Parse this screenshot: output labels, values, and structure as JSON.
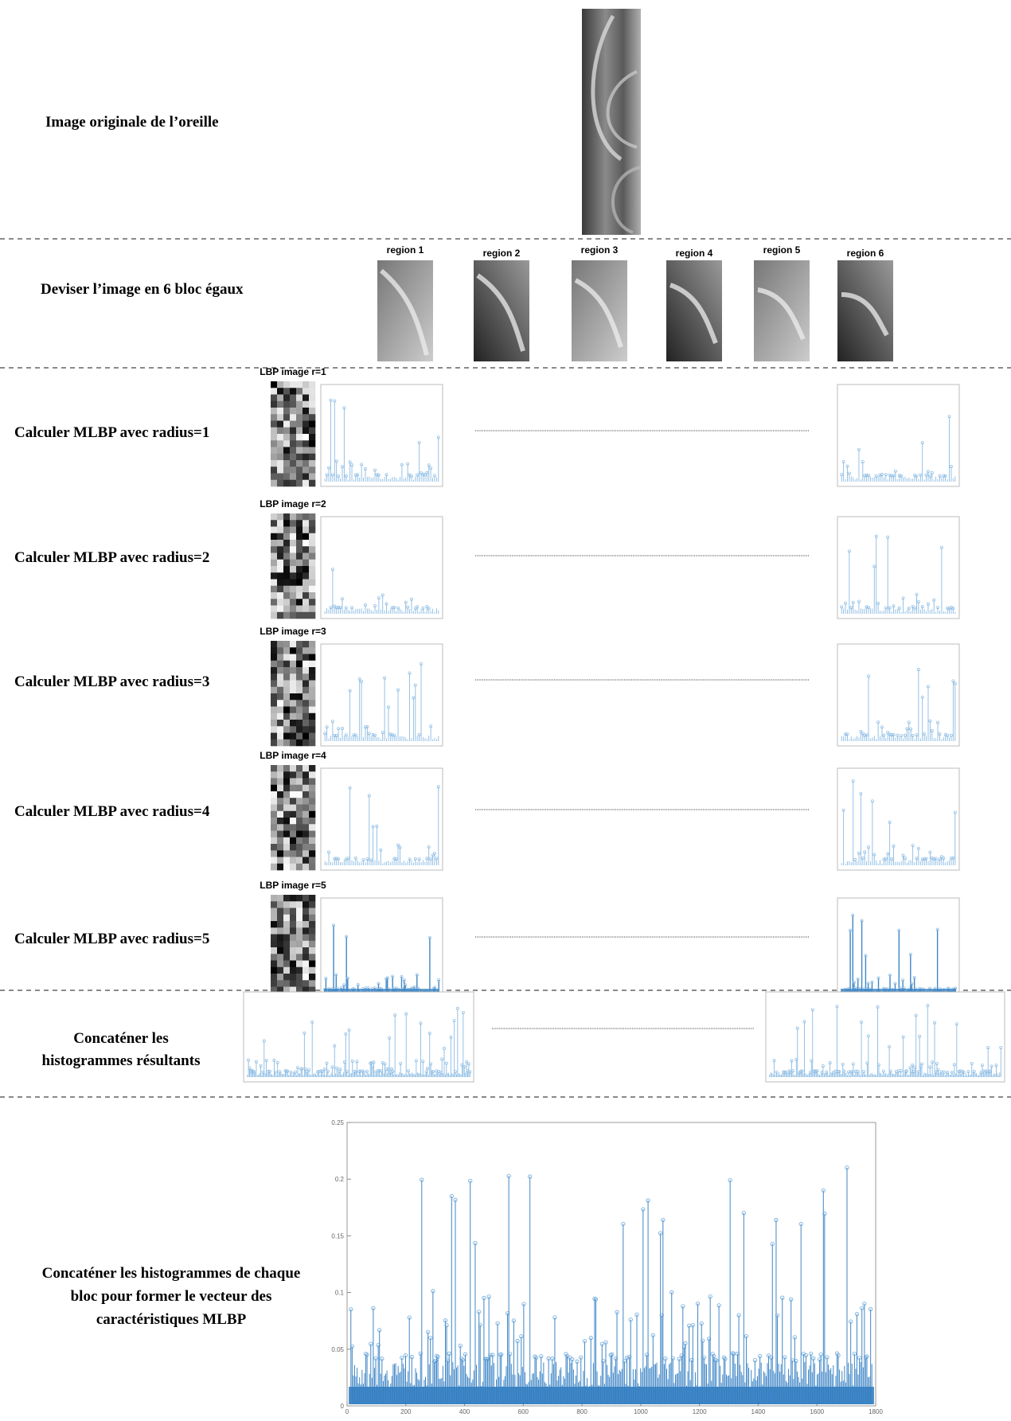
{
  "steps": {
    "original": "Image originale de l’oreille",
    "divide": "Deviser l’image en 6 bloc égaux",
    "radius": [
      "Calculer MLBP avec radius=1",
      "Calculer MLBP avec radius=2",
      "Calculer MLBP avec radius=3",
      "Calculer MLBP avec radius=4",
      "Calculer MLBP avec radius=5"
    ],
    "concat_block": [
      "Concaténer les",
      "histogrammes résultants"
    ],
    "concat_all": [
      "Concaténer les histogrammes de chaque",
      "bloc pour former le vecteur des",
      "caractéristiques MLBP"
    ]
  },
  "regions": [
    "region 1",
    "region 2",
    "region 3",
    "region 4",
    "region 5",
    "region 6"
  ],
  "lbp_labels": [
    "LBP image r=1",
    "LBP image r=2",
    "LBP image r=3",
    "LBP image r=4",
    "LBP image r=5"
  ],
  "final_chart": {
    "xlim": [
      0,
      1800
    ],
    "ylim": [
      0,
      0.25
    ],
    "xticks": [
      0,
      200,
      400,
      600,
      800,
      1000,
      1200,
      1400,
      1600,
      1800
    ],
    "yticks": [
      0,
      0.05,
      0.1,
      0.15,
      0.2,
      0.25
    ]
  }
}
